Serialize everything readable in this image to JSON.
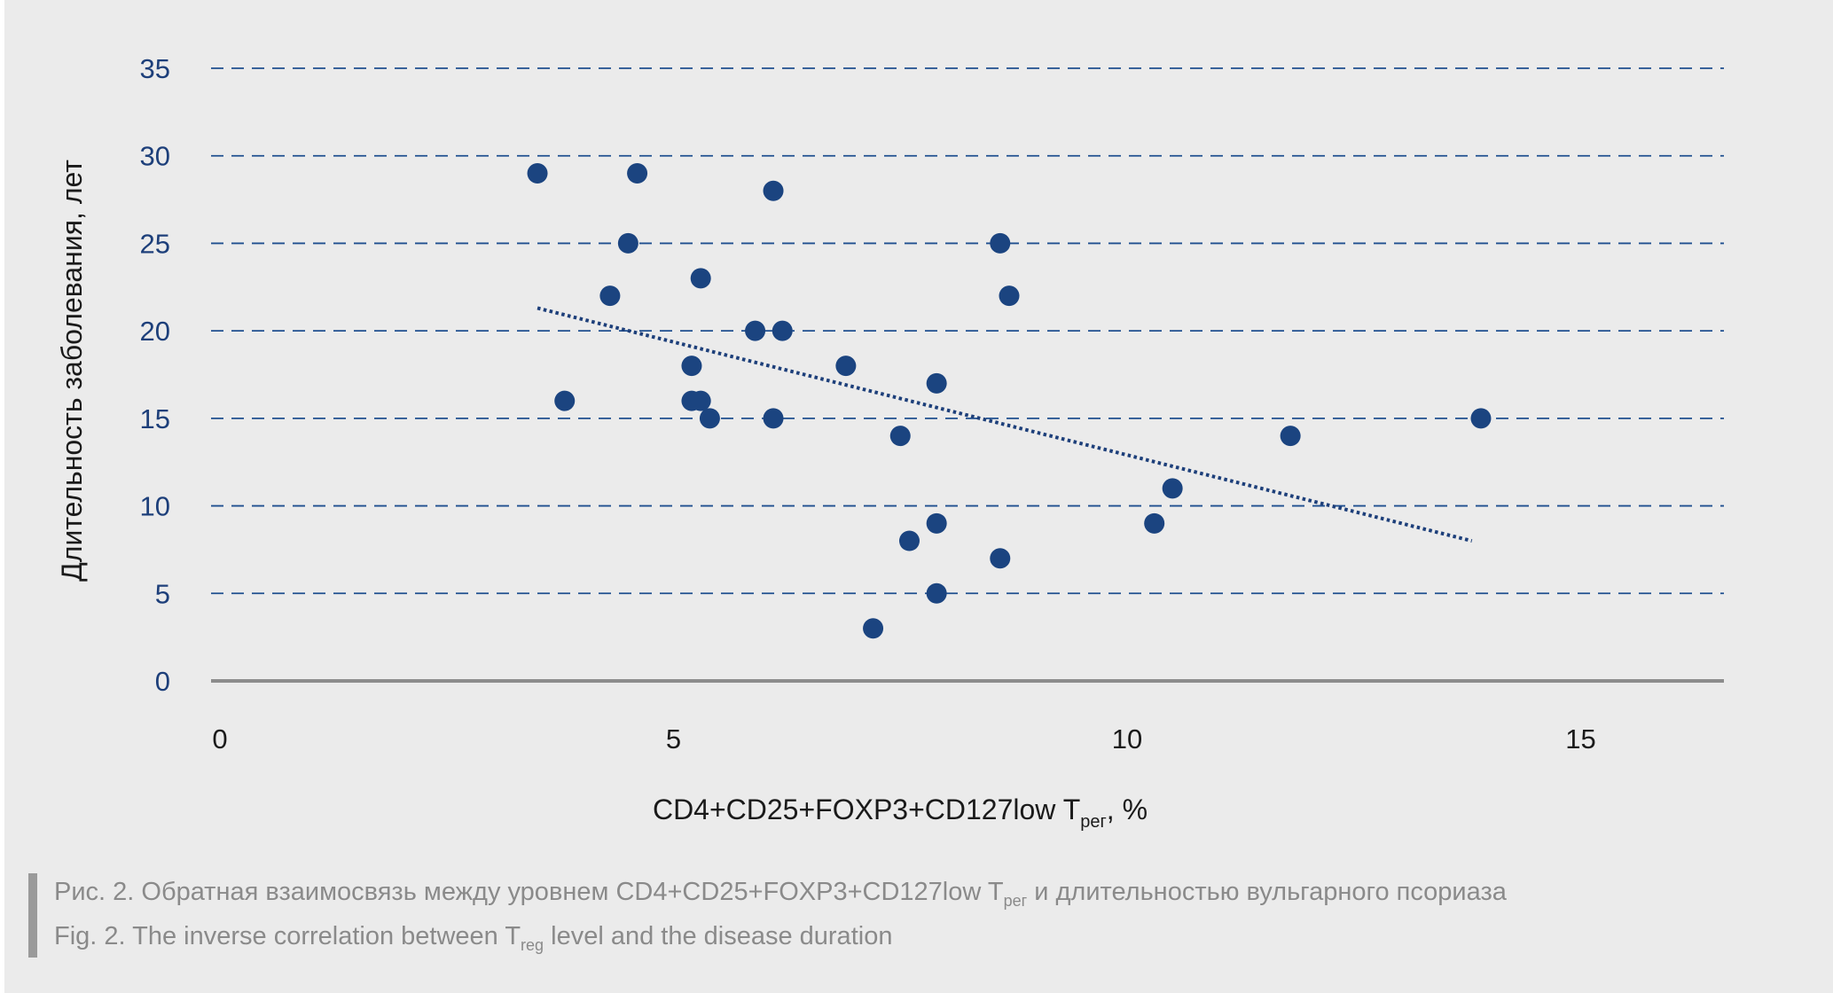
{
  "colors": {
    "background": "#ebebeb",
    "point": "#1b4480",
    "gridline": "#1f4f8f",
    "trendline": "#1d3f7a",
    "x_axis_line": "#8c8c8c",
    "caption_text": "#8a8a8a"
  },
  "chart_data": {
    "type": "scatter",
    "title": "",
    "xlabel": {
      "main": "CD4+CD25+FOXP3+CD127low T",
      "subscript": "рег",
      "suffix": ", %"
    },
    "ylabel": "Длительность заболевания, лет",
    "xlim": [
      0,
      16.6
    ],
    "ylim": [
      0,
      35
    ],
    "x_ticks": [
      "0",
      "5",
      "10",
      "15"
    ],
    "y_ticks": [
      "0",
      "5",
      "10",
      "15",
      "20",
      "25",
      "30",
      "35"
    ],
    "grid": "horizontal dashed",
    "legend": "none",
    "points": [
      {
        "x": 3.5,
        "y": 29
      },
      {
        "x": 4.6,
        "y": 29
      },
      {
        "x": 6.1,
        "y": 28
      },
      {
        "x": 4.5,
        "y": 25
      },
      {
        "x": 8.6,
        "y": 25
      },
      {
        "x": 5.3,
        "y": 23
      },
      {
        "x": 4.3,
        "y": 22
      },
      {
        "x": 8.7,
        "y": 22
      },
      {
        "x": 5.9,
        "y": 20
      },
      {
        "x": 6.2,
        "y": 20
      },
      {
        "x": 5.2,
        "y": 18
      },
      {
        "x": 6.9,
        "y": 18
      },
      {
        "x": 7.9,
        "y": 17
      },
      {
        "x": 3.8,
        "y": 16
      },
      {
        "x": 5.2,
        "y": 16
      },
      {
        "x": 5.3,
        "y": 16
      },
      {
        "x": 5.4,
        "y": 15
      },
      {
        "x": 6.1,
        "y": 15
      },
      {
        "x": 13.9,
        "y": 15
      },
      {
        "x": 7.5,
        "y": 14
      },
      {
        "x": 11.8,
        "y": 14
      },
      {
        "x": 10.5,
        "y": 11
      },
      {
        "x": 7.9,
        "y": 9
      },
      {
        "x": 10.3,
        "y": 9
      },
      {
        "x": 7.6,
        "y": 8
      },
      {
        "x": 8.6,
        "y": 7
      },
      {
        "x": 7.9,
        "y": 5
      },
      {
        "x": 7.2,
        "y": 3
      }
    ],
    "trendline": {
      "style": "dotted",
      "start": {
        "x": 3.5,
        "y": 21.3
      },
      "end": {
        "x": 13.8,
        "y": 8
      }
    }
  },
  "caption": {
    "ru": {
      "before": "Рис. 2. Обратная взаимосвязь между уровнем CD4+CD25+FOXP3+CD127low T",
      "sub": "рег",
      "after": " и длительностью вульгарного псориаза"
    },
    "en": {
      "before": "Fig. 2. The inverse correlation between T",
      "sub": "reg",
      "after": " level and the disease duration"
    }
  }
}
